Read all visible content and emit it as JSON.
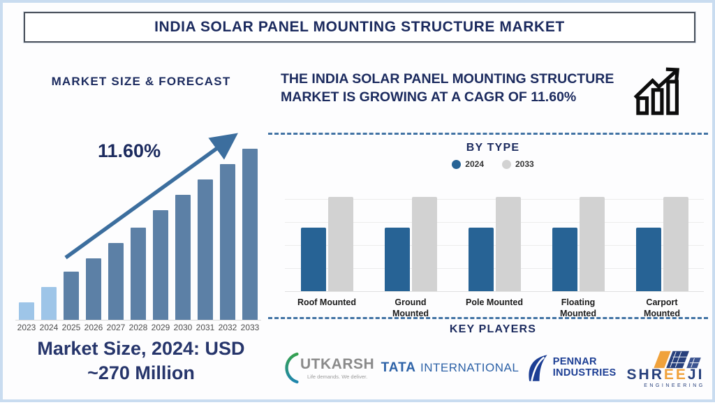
{
  "banner": {
    "title": "INDIA SOLAR PANEL MOUNTING STRUCTURE MARKET"
  },
  "left": {
    "heading": "MARKET SIZE & FORECAST",
    "cagr_label": "11.60%",
    "caption_line1": "Market Size, 2024: USD",
    "caption_line2": "~270 Million"
  },
  "right": {
    "headline": "THE INDIA SOLAR PANEL MOUNTING STRUCTURE MARKET IS GROWING AT A CAGR OF 11.60%",
    "by_type_title": "BY TYPE",
    "key_players_title": "KEY PLAYERS"
  },
  "players": {
    "utkarsh": {
      "name": "UTKARSH",
      "tagline": "Life demands. We deliver.",
      "swoosh_green": "#35a14f",
      "swoosh_teal": "#1f86ae"
    },
    "tata": {
      "name_bold": "TATA",
      "name_rest": "INTERNATIONAL",
      "brand_color": "#2d62a7"
    },
    "pennar": {
      "line1": "PENNAR",
      "line2": "INDUSTRIES",
      "brand_color": "#1c3e94"
    },
    "shreeji": {
      "part1": "SHR",
      "part2": "EE",
      "part3": "JI",
      "sub": "ENGINEERING",
      "navy": "#27407c",
      "orange": "#f0a23c"
    }
  },
  "chart_data": [
    {
      "type": "bar",
      "title": "MARKET SIZE & FORECAST",
      "categories": [
        "2023",
        "2024",
        "2025",
        "2026",
        "2027",
        "2028",
        "2029",
        "2030",
        "2031",
        "2032",
        "2033"
      ],
      "values_relative_pct": [
        10,
        19,
        28,
        36,
        45,
        54,
        64,
        73,
        82,
        91,
        100
      ],
      "annotation": "11.60%",
      "known_point": "Market Size, 2024: USD ~270 Million",
      "highlight_count": 2,
      "highlight_color": "#9ec5e8",
      "default_color": "#5c80a6",
      "grid": false,
      "legend": "none",
      "xlabel": "",
      "ylabel": ""
    },
    {
      "type": "bar",
      "title": "BY TYPE",
      "categories": [
        "Roof Mounted",
        "Ground Mounted",
        "Pole Mounted",
        "Floating Mounted",
        "Carport Mounted"
      ],
      "display_categories": [
        "Roof Mounted",
        "Ground\nMounted",
        "Pole Mounted",
        "Floating\nMounted",
        "Carport\nMounted"
      ],
      "series": [
        {
          "name": "2024",
          "color": "#276395",
          "values_relative_pct": [
            56,
            56,
            56,
            56,
            56
          ]
        },
        {
          "name": "2033",
          "color": "#d2d2d2",
          "values_relative_pct": [
            83,
            83,
            83,
            83,
            83
          ]
        }
      ],
      "grid": true,
      "legend_position": "top",
      "xlabel": "",
      "ylabel": ""
    }
  ]
}
